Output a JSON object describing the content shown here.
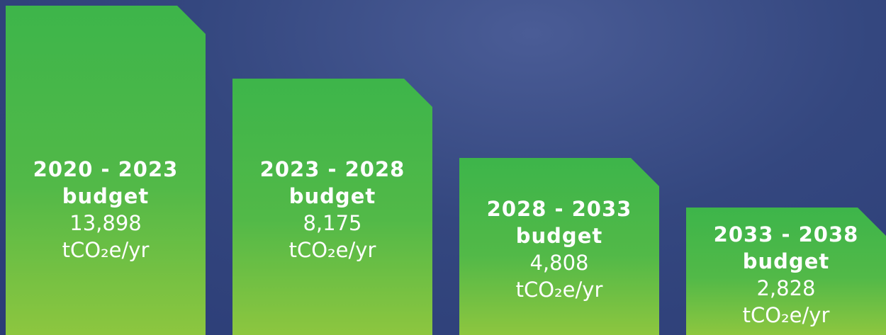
{
  "panels": [
    {
      "period": "2020 - 2023",
      "label": "budget",
      "value": "13,898",
      "unit": "tCO₂e/yr"
    },
    {
      "period": "2023 - 2028",
      "label": "budget",
      "value": "8,175",
      "unit": "tCO₂e/yr"
    },
    {
      "period": "2028 - 2033",
      "label": "budget",
      "value": "4,808",
      "unit": "tCO₂e/yr"
    },
    {
      "period": "2033 - 2038",
      "label": "budget",
      "value": "2,828",
      "unit": "tCO₂e/yr"
    }
  ]
}
